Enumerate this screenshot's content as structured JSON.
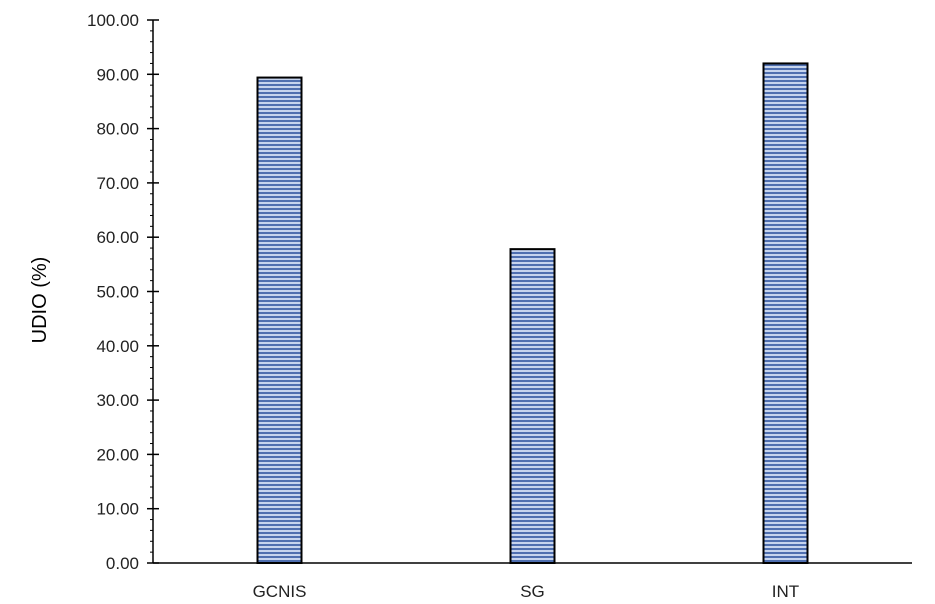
{
  "chart_data": {
    "type": "bar",
    "title": "",
    "xlabel": "",
    "ylabel": "UDIO (%)",
    "categories": [
      "GCNIS",
      "SG",
      "INT"
    ],
    "values": [
      89.4,
      57.8,
      92.0
    ],
    "ylim": [
      0,
      100
    ],
    "yticks": [
      "0.00",
      "10.00",
      "20.00",
      "30.00",
      "40.00",
      "50.00",
      "60.00",
      "70.00",
      "80.00",
      "90.00",
      "100.00"
    ],
    "grid": false,
    "legend": "none",
    "bar_fill": "horizontal-stripes",
    "colors": {
      "bar_stripe_light": "#c6d4ee",
      "bar_stripe_dark": "#4f6fb0",
      "bar_outline": "#000000",
      "axis": "#000000"
    }
  }
}
